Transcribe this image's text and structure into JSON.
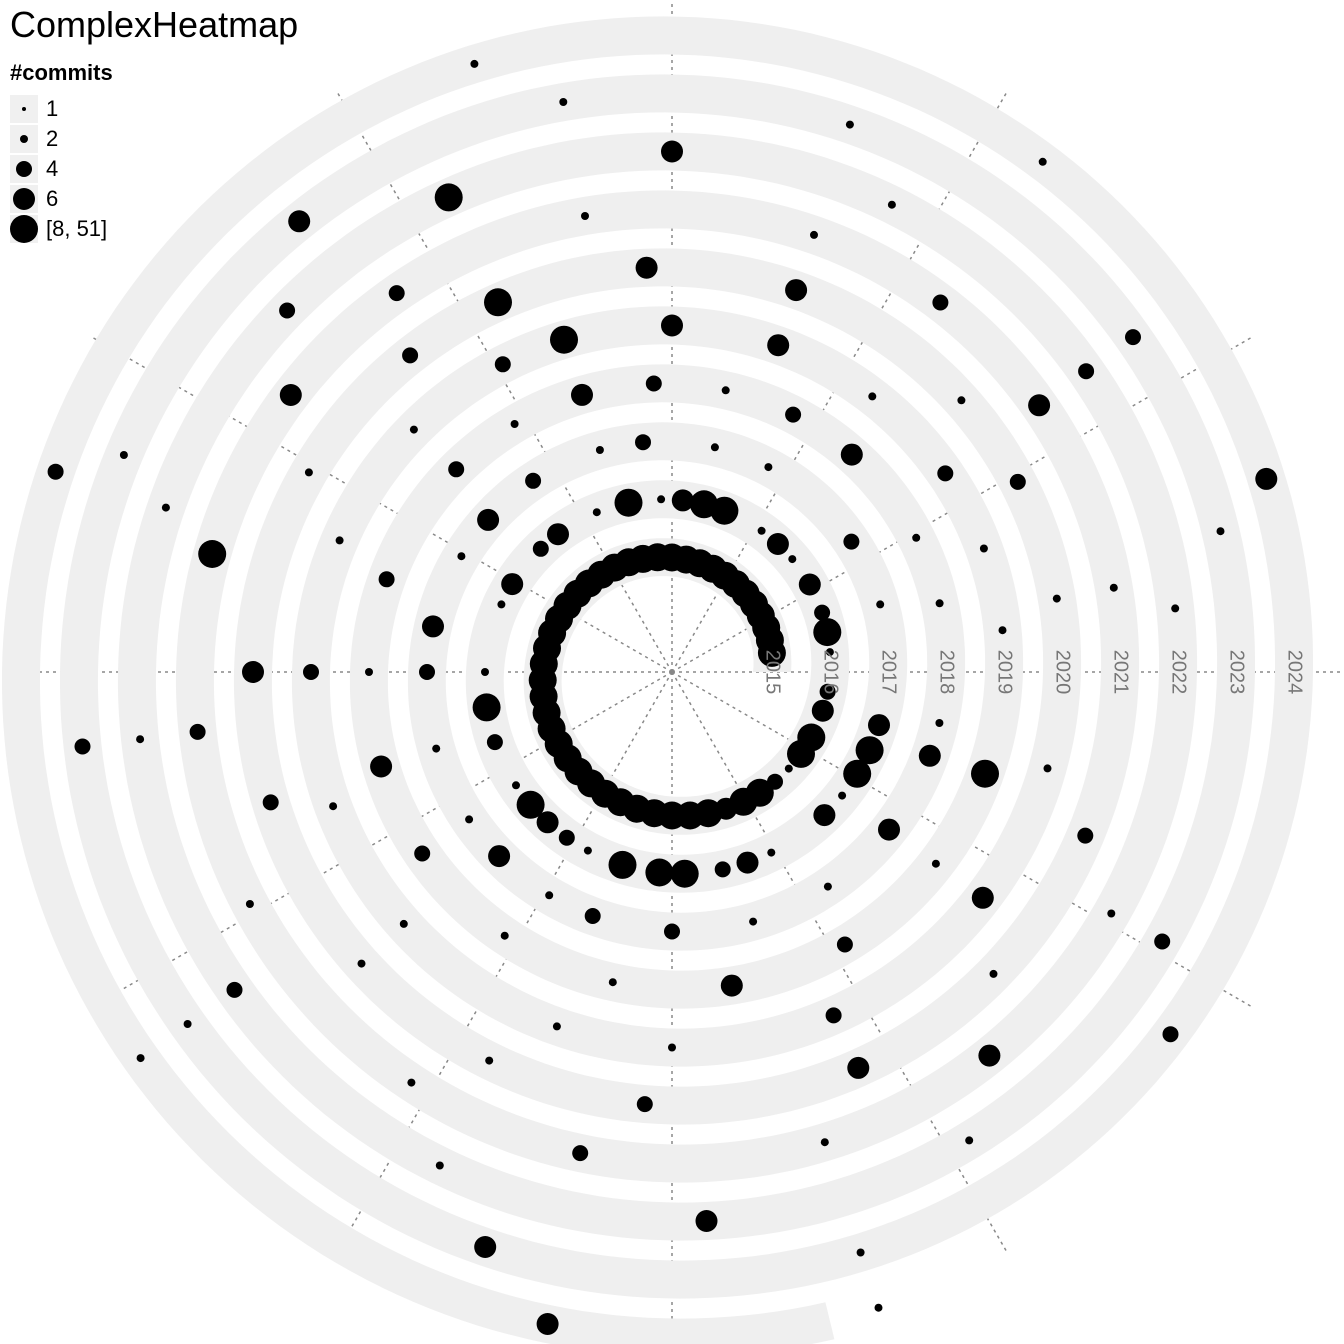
{
  "chart_data": {
    "type": "scatter",
    "title": "ComplexHeatmap",
    "legend": {
      "title": "#commits",
      "placement": "top-left",
      "entries": [
        {
          "label": "1",
          "value": 1
        },
        {
          "label": "2",
          "value": 2
        },
        {
          "label": "4",
          "value": 4
        },
        {
          "label": "6",
          "value": 6
        },
        {
          "label": "[8, 51]",
          "value": 8
        }
      ]
    },
    "spiral": {
      "start": "2015",
      "end": "2024",
      "loops": [
        "2015",
        "2016",
        "2017",
        "2018",
        "2019",
        "2020",
        "2021",
        "2022",
        "2023",
        "2024"
      ],
      "track_color": "#efefef",
      "point_color": "#000000",
      "grid": true,
      "radial_guides": 12
    },
    "points": [
      {
        "x": 2015.03,
        "v": 8
      },
      {
        "x": 2015.05,
        "v": 8
      },
      {
        "x": 2015.07,
        "v": 8
      },
      {
        "x": 2015.09,
        "v": 8
      },
      {
        "x": 2015.11,
        "v": 8
      },
      {
        "x": 2015.13,
        "v": 8
      },
      {
        "x": 2015.15,
        "v": 8
      },
      {
        "x": 2015.17,
        "v": 8
      },
      {
        "x": 2015.19,
        "v": 8
      },
      {
        "x": 2015.21,
        "v": 8
      },
      {
        "x": 2015.23,
        "v": 8
      },
      {
        "x": 2015.25,
        "v": 8
      },
      {
        "x": 2015.27,
        "v": 8
      },
      {
        "x": 2015.29,
        "v": 8
      },
      {
        "x": 2015.31,
        "v": 8
      },
      {
        "x": 2015.33,
        "v": 8
      },
      {
        "x": 2015.35,
        "v": 8
      },
      {
        "x": 2015.37,
        "v": 8
      },
      {
        "x": 2015.39,
        "v": 8
      },
      {
        "x": 2015.41,
        "v": 8
      },
      {
        "x": 2015.43,
        "v": 8
      },
      {
        "x": 2015.45,
        "v": 8
      },
      {
        "x": 2015.47,
        "v": 8
      },
      {
        "x": 2015.49,
        "v": 8
      },
      {
        "x": 2015.51,
        "v": 8
      },
      {
        "x": 2015.53,
        "v": 8
      },
      {
        "x": 2015.55,
        "v": 8
      },
      {
        "x": 2015.57,
        "v": 8
      },
      {
        "x": 2015.59,
        "v": 8
      },
      {
        "x": 2015.61,
        "v": 8
      },
      {
        "x": 2015.63,
        "v": 8
      },
      {
        "x": 2015.65,
        "v": 8
      },
      {
        "x": 2015.67,
        "v": 8
      },
      {
        "x": 2015.69,
        "v": 8
      },
      {
        "x": 2015.71,
        "v": 8
      },
      {
        "x": 2015.73,
        "v": 8
      },
      {
        "x": 2015.75,
        "v": 8
      },
      {
        "x": 2015.77,
        "v": 8
      },
      {
        "x": 2015.79,
        "v": 8
      },
      {
        "x": 2015.81,
        "v": 6
      },
      {
        "x": 2015.83,
        "v": 8
      },
      {
        "x": 2015.85,
        "v": 8
      },
      {
        "x": 2015.87,
        "v": 4
      },
      {
        "x": 2015.89,
        "v": 2
      },
      {
        "x": 2015.91,
        "v": 8
      },
      {
        "x": 2015.93,
        "v": 8
      },
      {
        "x": 2015.96,
        "v": 6
      },
      {
        "x": 2015.98,
        "v": 4
      },
      {
        "x": 2016.02,
        "v": 2
      },
      {
        "x": 2016.04,
        "v": 8
      },
      {
        "x": 2016.06,
        "v": 4
      },
      {
        "x": 2016.09,
        "v": 6
      },
      {
        "x": 2016.12,
        "v": 2
      },
      {
        "x": 2016.14,
        "v": 6
      },
      {
        "x": 2016.16,
        "v": 2
      },
      {
        "x": 2016.2,
        "v": 8
      },
      {
        "x": 2016.22,
        "v": 8
      },
      {
        "x": 2016.24,
        "v": 6
      },
      {
        "x": 2016.26,
        "v": 2
      },
      {
        "x": 2016.29,
        "v": 8
      },
      {
        "x": 2016.32,
        "v": 2
      },
      {
        "x": 2016.36,
        "v": 6
      },
      {
        "x": 2016.38,
        "v": 4
      },
      {
        "x": 2016.42,
        "v": 6
      },
      {
        "x": 2016.44,
        "v": 2
      },
      {
        "x": 2016.5,
        "v": 2
      },
      {
        "x": 2016.53,
        "v": 8
      },
      {
        "x": 2016.56,
        "v": 4
      },
      {
        "x": 2016.6,
        "v": 2
      },
      {
        "x": 2016.62,
        "v": 8
      },
      {
        "x": 2016.64,
        "v": 6
      },
      {
        "x": 2016.66,
        "v": 4
      },
      {
        "x": 2016.68,
        "v": 2
      },
      {
        "x": 2016.71,
        "v": 8
      },
      {
        "x": 2016.74,
        "v": 8
      },
      {
        "x": 2016.76,
        "v": 8
      },
      {
        "x": 2016.79,
        "v": 4
      },
      {
        "x": 2016.81,
        "v": 6
      },
      {
        "x": 2016.83,
        "v": 2
      },
      {
        "x": 2016.88,
        "v": 6
      },
      {
        "x": 2016.9,
        "v": 2
      },
      {
        "x": 2016.92,
        "v": 8
      },
      {
        "x": 2016.94,
        "v": 8
      },
      {
        "x": 2016.96,
        "v": 6
      },
      {
        "x": 2017.05,
        "v": 2
      },
      {
        "x": 2017.1,
        "v": 4
      },
      {
        "x": 2017.18,
        "v": 2
      },
      {
        "x": 2017.22,
        "v": 2
      },
      {
        "x": 2017.27,
        "v": 4
      },
      {
        "x": 2017.3,
        "v": 2
      },
      {
        "x": 2017.35,
        "v": 4
      },
      {
        "x": 2017.39,
        "v": 6
      },
      {
        "x": 2017.42,
        "v": 2
      },
      {
        "x": 2017.47,
        "v": 6
      },
      {
        "x": 2017.5,
        "v": 4
      },
      {
        "x": 2017.55,
        "v": 2
      },
      {
        "x": 2017.6,
        "v": 2
      },
      {
        "x": 2017.63,
        "v": 6
      },
      {
        "x": 2017.67,
        "v": 2
      },
      {
        "x": 2017.7,
        "v": 4
      },
      {
        "x": 2017.75,
        "v": 4
      },
      {
        "x": 2017.8,
        "v": 2
      },
      {
        "x": 2017.85,
        "v": 2
      },
      {
        "x": 2017.9,
        "v": 6
      },
      {
        "x": 2017.95,
        "v": 6
      },
      {
        "x": 2017.97,
        "v": 2
      },
      {
        "x": 2018.04,
        "v": 2
      },
      {
        "x": 2018.08,
        "v": 2
      },
      {
        "x": 2018.14,
        "v": 6
      },
      {
        "x": 2018.18,
        "v": 4
      },
      {
        "x": 2018.22,
        "v": 2
      },
      {
        "x": 2018.26,
        "v": 4
      },
      {
        "x": 2018.3,
        "v": 6
      },
      {
        "x": 2018.34,
        "v": 2
      },
      {
        "x": 2018.38,
        "v": 4
      },
      {
        "x": 2018.45,
        "v": 4
      },
      {
        "x": 2018.5,
        "v": 2
      },
      {
        "x": 2018.55,
        "v": 6
      },
      {
        "x": 2018.6,
        "v": 4
      },
      {
        "x": 2018.66,
        "v": 2
      },
      {
        "x": 2018.72,
        "v": 2
      },
      {
        "x": 2018.78,
        "v": 6
      },
      {
        "x": 2018.84,
        "v": 4
      },
      {
        "x": 2018.9,
        "v": 2
      },
      {
        "x": 2018.95,
        "v": 8
      },
      {
        "x": 2019.02,
        "v": 2
      },
      {
        "x": 2019.06,
        "v": 2
      },
      {
        "x": 2019.1,
        "v": 4
      },
      {
        "x": 2019.15,
        "v": 2
      },
      {
        "x": 2019.2,
        "v": 6
      },
      {
        "x": 2019.25,
        "v": 6
      },
      {
        "x": 2019.3,
        "v": 8
      },
      {
        "x": 2019.33,
        "v": 4
      },
      {
        "x": 2019.38,
        "v": 2
      },
      {
        "x": 2019.44,
        "v": 2
      },
      {
        "x": 2019.5,
        "v": 4
      },
      {
        "x": 2019.56,
        "v": 2
      },
      {
        "x": 2019.62,
        "v": 2
      },
      {
        "x": 2019.7,
        "v": 2
      },
      {
        "x": 2019.75,
        "v": 2
      },
      {
        "x": 2019.82,
        "v": 4
      },
      {
        "x": 2019.9,
        "v": 6
      },
      {
        "x": 2019.96,
        "v": 2
      },
      {
        "x": 2020.03,
        "v": 2
      },
      {
        "x": 2020.08,
        "v": 4
      },
      {
        "x": 2020.12,
        "v": 2
      },
      {
        "x": 2020.2,
        "v": 6
      },
      {
        "x": 2020.26,
        "v": 6
      },
      {
        "x": 2020.32,
        "v": 8
      },
      {
        "x": 2020.36,
        "v": 4
      },
      {
        "x": 2020.42,
        "v": 2
      },
      {
        "x": 2020.5,
        "v": 6
      },
      {
        "x": 2020.55,
        "v": 4
      },
      {
        "x": 2020.62,
        "v": 2
      },
      {
        "x": 2020.68,
        "v": 2
      },
      {
        "x": 2020.74,
        "v": 4
      },
      {
        "x": 2020.82,
        "v": 6
      },
      {
        "x": 2020.88,
        "v": 2
      },
      {
        "x": 2020.94,
        "v": 4
      },
      {
        "x": 2021.03,
        "v": 2
      },
      {
        "x": 2021.1,
        "v": 6
      },
      {
        "x": 2021.15,
        "v": 4
      },
      {
        "x": 2021.2,
        "v": 2
      },
      {
        "x": 2021.28,
        "v": 2
      },
      {
        "x": 2021.35,
        "v": 4
      },
      {
        "x": 2021.4,
        "v": 6
      },
      {
        "x": 2021.46,
        "v": 8
      },
      {
        "x": 2021.52,
        "v": 4
      },
      {
        "x": 2021.58,
        "v": 2
      },
      {
        "x": 2021.66,
        "v": 2
      },
      {
        "x": 2021.72,
        "v": 4
      },
      {
        "x": 2021.8,
        "v": 2
      },
      {
        "x": 2021.86,
        "v": 6
      },
      {
        "x": 2021.92,
        "v": 2
      },
      {
        "x": 2022.02,
        "v": 2
      },
      {
        "x": 2022.1,
        "v": 4
      },
      {
        "x": 2022.18,
        "v": 2
      },
      {
        "x": 2022.25,
        "v": 6
      },
      {
        "x": 2022.32,
        "v": 8
      },
      {
        "x": 2022.38,
        "v": 4
      },
      {
        "x": 2022.45,
        "v": 2
      },
      {
        "x": 2022.52,
        "v": 2
      },
      {
        "x": 2022.6,
        "v": 4
      },
      {
        "x": 2022.68,
        "v": 2
      },
      {
        "x": 2022.76,
        "v": 6
      },
      {
        "x": 2022.84,
        "v": 2
      },
      {
        "x": 2022.92,
        "v": 4
      },
      {
        "x": 2023.04,
        "v": 2
      },
      {
        "x": 2023.1,
        "v": 4
      },
      {
        "x": 2023.2,
        "v": 2
      },
      {
        "x": 2023.28,
        "v": 2
      },
      {
        "x": 2023.36,
        "v": 6
      },
      {
        "x": 2023.44,
        "v": 2
      },
      {
        "x": 2023.52,
        "v": 4
      },
      {
        "x": 2023.6,
        "v": 2
      },
      {
        "x": 2023.7,
        "v": 6
      },
      {
        "x": 2023.8,
        "v": 2
      },
      {
        "x": 2023.9,
        "v": 4
      },
      {
        "x": 2024.05,
        "v": 6
      },
      {
        "x": 2024.15,
        "v": 2
      },
      {
        "x": 2024.3,
        "v": 2
      },
      {
        "x": 2024.45,
        "v": 4
      },
      {
        "x": 2024.6,
        "v": 2
      },
      {
        "x": 2024.72,
        "v": 6
      },
      {
        "x": 2024.8,
        "v": 2
      }
    ]
  }
}
